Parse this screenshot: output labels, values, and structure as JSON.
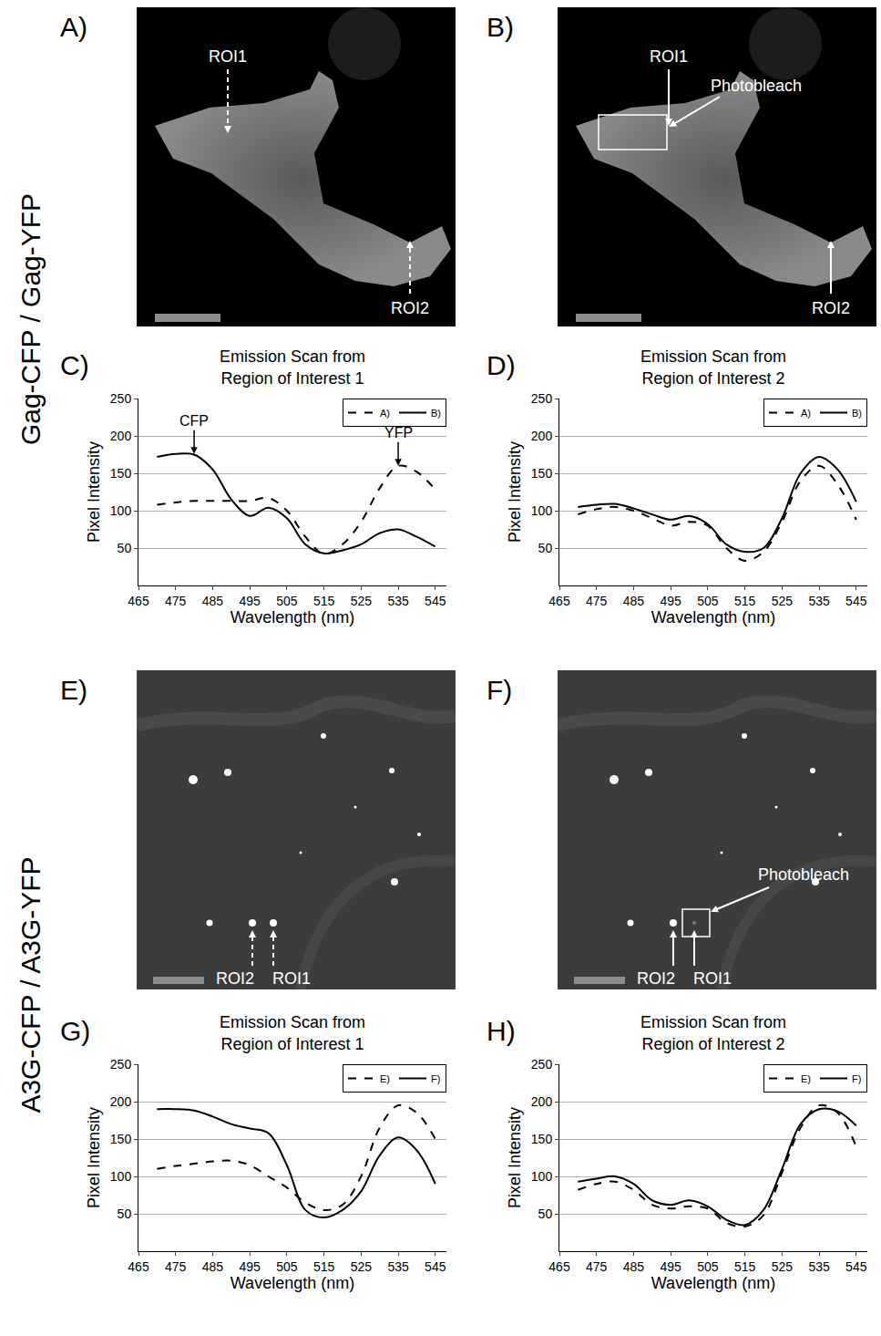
{
  "row_labels": [
    "Gag-CFP / Gag-YFP",
    "A3G-CFP / A3G-YFP"
  ],
  "image_panels": [
    {
      "panel": "A)",
      "roi_labels": [
        "ROI1",
        "ROI2"
      ],
      "line_style": "dashed"
    },
    {
      "panel": "B)",
      "roi_labels": [
        "ROI1",
        "ROI2"
      ],
      "photobleach_label": "Photobleach",
      "line_style": "solid"
    },
    {
      "panel": "E)",
      "roi_labels": [
        "ROI2",
        "ROI1"
      ],
      "line_style": "dashed"
    },
    {
      "panel": "F)",
      "roi_labels": [
        "ROI2",
        "ROI1"
      ],
      "photobleach_label": "Photobleach",
      "line_style": "solid"
    }
  ],
  "chart_data": [
    {
      "panel": "C)",
      "type": "line",
      "title": "Emission Scan from Region of Interest 1",
      "x_label": "Wavelength (nm)",
      "y_label": "Pixel Intensity",
      "x": [
        470,
        475,
        480,
        485,
        490,
        495,
        500,
        505,
        510,
        515,
        520,
        525,
        530,
        535,
        540,
        545
      ],
      "series": [
        {
          "name": "A)",
          "color": "#000000",
          "line_style": "dashed",
          "values": [
            108,
            111,
            113,
            113,
            113,
            113,
            117,
            100,
            65,
            42,
            55,
            85,
            130,
            160,
            152,
            128
          ]
        },
        {
          "name": "B)",
          "color": "#000000",
          "line_style": "solid",
          "values": [
            172,
            176,
            175,
            155,
            115,
            93,
            104,
            90,
            55,
            43,
            47,
            55,
            70,
            75,
            65,
            52
          ]
        }
      ],
      "xlim": [
        465,
        548
      ],
      "xticks": [
        465,
        475,
        485,
        495,
        505,
        515,
        525,
        535,
        545
      ],
      "ylim": [
        0,
        250
      ],
      "yticks": [
        50,
        100,
        150,
        200,
        250
      ],
      "grid": "y",
      "legend": "upper right",
      "annotations": [
        {
          "text": "CFP",
          "x": 480,
          "y": 176
        },
        {
          "text": "YFP",
          "x": 535,
          "y": 160
        }
      ]
    },
    {
      "panel": "D)",
      "type": "line",
      "title": "Emission Scan from Region of Interest 2",
      "x_label": "Wavelength (nm)",
      "y_label": "Pixel Intensity",
      "x": [
        470,
        475,
        480,
        485,
        490,
        495,
        500,
        505,
        510,
        515,
        520,
        525,
        530,
        535,
        540,
        545
      ],
      "series": [
        {
          "name": "A)",
          "color": "#000000",
          "line_style": "dashed",
          "values": [
            95,
            102,
            105,
            100,
            90,
            80,
            85,
            80,
            50,
            33,
            45,
            85,
            140,
            160,
            135,
            88
          ]
        },
        {
          "name": "B)",
          "color": "#000000",
          "line_style": "solid",
          "values": [
            105,
            108,
            109,
            103,
            95,
            88,
            93,
            82,
            55,
            45,
            50,
            90,
            150,
            172,
            155,
            112
          ]
        }
      ],
      "xlim": [
        465,
        548
      ],
      "xticks": [
        465,
        475,
        485,
        495,
        505,
        515,
        525,
        535,
        545
      ],
      "ylim": [
        0,
        250
      ],
      "yticks": [
        50,
        100,
        150,
        200,
        250
      ],
      "grid": "y",
      "legend": "upper right"
    },
    {
      "panel": "G)",
      "type": "line",
      "title": "Emission Scan from Region of Interest 1",
      "x_label": "Wavelength (nm)",
      "y_label": "Pixel Intensity",
      "x": [
        470,
        475,
        480,
        485,
        490,
        495,
        500,
        505,
        510,
        515,
        520,
        525,
        530,
        535,
        540,
        545
      ],
      "series": [
        {
          "name": "E)",
          "color": "#000000",
          "line_style": "dashed",
          "values": [
            110,
            114,
            117,
            120,
            121,
            115,
            100,
            85,
            65,
            55,
            62,
            100,
            165,
            195,
            185,
            150
          ]
        },
        {
          "name": "F)",
          "color": "#000000",
          "line_style": "solid",
          "values": [
            190,
            190,
            188,
            180,
            170,
            164,
            158,
            115,
            55,
            45,
            55,
            80,
            128,
            152,
            135,
            90
          ]
        }
      ],
      "xlim": [
        465,
        548
      ],
      "xticks": [
        465,
        475,
        485,
        495,
        505,
        515,
        525,
        535,
        545
      ],
      "ylim": [
        0,
        250
      ],
      "yticks": [
        50,
        100,
        150,
        200,
        250
      ],
      "grid": "y",
      "legend": "upper right"
    },
    {
      "panel": "H)",
      "type": "line",
      "title": "Emission Scan from Region of Interest 2",
      "x_label": "Wavelength (nm)",
      "y_label": "Pixel Intensity",
      "x": [
        470,
        475,
        480,
        485,
        490,
        495,
        500,
        505,
        510,
        515,
        520,
        525,
        530,
        535,
        540,
        545
      ],
      "series": [
        {
          "name": "E)",
          "color": "#000000",
          "line_style": "dashed",
          "values": [
            82,
            90,
            93,
            82,
            62,
            57,
            60,
            57,
            38,
            33,
            48,
            105,
            165,
            195,
            185,
            140
          ]
        },
        {
          "name": "F)",
          "color": "#000000",
          "line_style": "solid",
          "values": [
            93,
            97,
            100,
            90,
            68,
            62,
            68,
            60,
            42,
            35,
            55,
            110,
            170,
            190,
            187,
            168
          ]
        }
      ],
      "xlim": [
        465,
        548
      ],
      "xticks": [
        465,
        475,
        485,
        495,
        505,
        515,
        525,
        535,
        545
      ],
      "ylim": [
        0,
        250
      ],
      "yticks": [
        50,
        100,
        150,
        200,
        250
      ],
      "grid": "y",
      "legend": "upper right"
    }
  ]
}
